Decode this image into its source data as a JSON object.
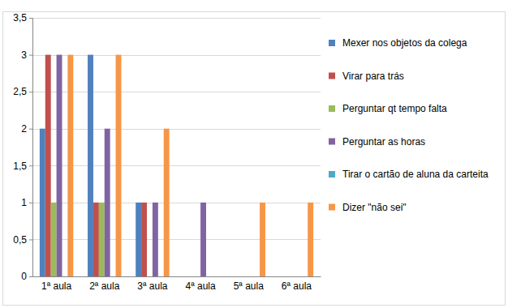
{
  "chart_data": {
    "type": "bar",
    "categories": [
      "1ª aula",
      "2ª aula",
      "3ª aula",
      "4ª aula",
      "5ª aula",
      "6ª aula"
    ],
    "series": [
      {
        "name": "Mexer nos objetos da colega",
        "color": "#4f81bd",
        "values": [
          2,
          3,
          1,
          0,
          0,
          0
        ]
      },
      {
        "name": "Virar para trás",
        "color": "#c0504d",
        "values": [
          3,
          1,
          1,
          0,
          0,
          0
        ]
      },
      {
        "name": "Perguntar qt tempo falta",
        "color": "#9bbb59",
        "values": [
          1,
          1,
          0,
          0,
          0,
          0
        ]
      },
      {
        "name": "Perguntar as horas",
        "color": "#8064a2",
        "values": [
          3,
          2,
          1,
          1,
          0,
          0
        ]
      },
      {
        "name": "Tirar o cartão de aluna da carteita",
        "color": "#4bacc6",
        "values": [
          0,
          0,
          0,
          0,
          0,
          0
        ]
      },
      {
        "name": "Dizer \"não sei\"",
        "color": "#f79646",
        "values": [
          3,
          3,
          2,
          0,
          1,
          1
        ]
      }
    ],
    "ylim": [
      0,
      3.5
    ],
    "yticks": [
      0,
      {
        "value": 0.5,
        "label": "0,5"
      },
      1,
      {
        "value": 1.5,
        "label": "1,5"
      },
      2,
      {
        "value": 2.5,
        "label": "2,5"
      },
      3,
      {
        "value": 3.5,
        "label": "3,5"
      }
    ],
    "grid": true,
    "legend": "right"
  }
}
